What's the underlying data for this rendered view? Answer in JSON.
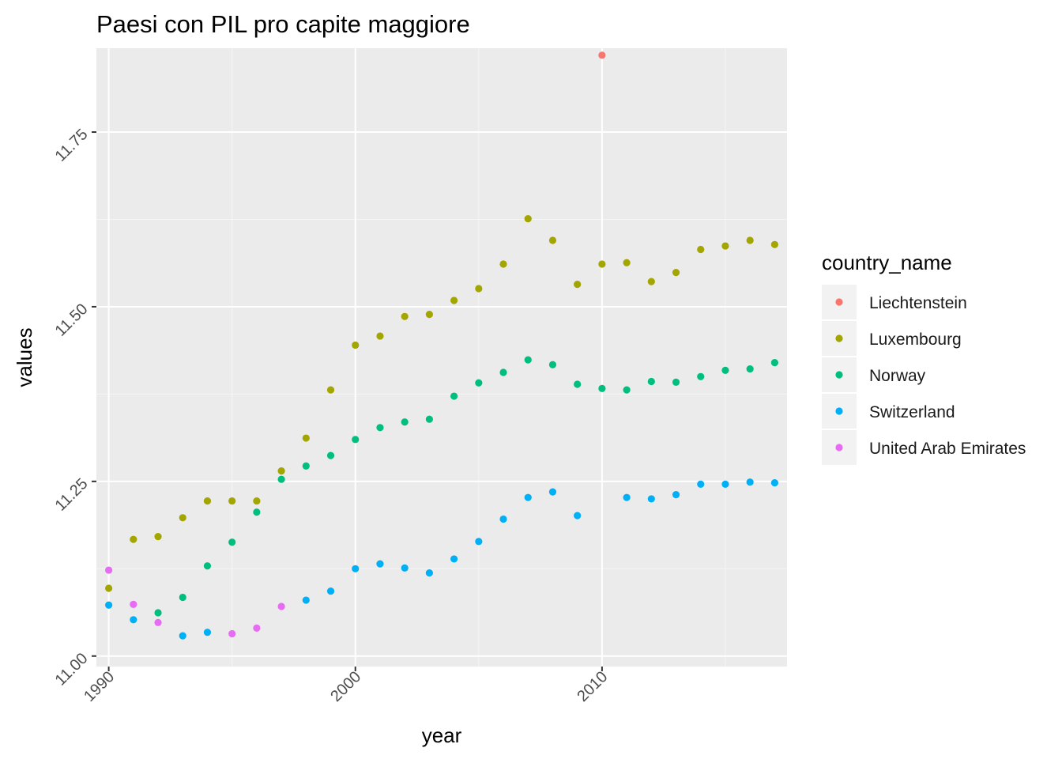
{
  "chart_data": {
    "type": "scatter",
    "title": "Paesi con PIL pro capite maggiore",
    "xlabel": "year",
    "ylabel": "values",
    "xlim": [
      1989.5,
      2017.5
    ],
    "ylim": [
      10.985,
      11.87
    ],
    "x_ticks": [
      {
        "value": 1990,
        "label": "1990"
      },
      {
        "value": 2000,
        "label": "2000"
      },
      {
        "value": 2010,
        "label": "2010"
      }
    ],
    "y_ticks": [
      {
        "value": 11.0,
        "label": "11.00"
      },
      {
        "value": 11.25,
        "label": "11.25"
      },
      {
        "value": 11.5,
        "label": "11.50"
      },
      {
        "value": 11.75,
        "label": "11.75"
      }
    ],
    "grid": true,
    "legend": {
      "title": "country_name",
      "position": "right"
    },
    "series": [
      {
        "name": "Liechtenstein",
        "color": "#F8766D",
        "points": [
          [
            2010,
            11.86
          ]
        ]
      },
      {
        "name": "Luxembourg",
        "color": "#A3A500",
        "points": [
          [
            1990,
            11.097
          ],
          [
            1991,
            11.167
          ],
          [
            1992,
            11.171
          ],
          [
            1993,
            11.198
          ],
          [
            1994,
            11.222
          ],
          [
            1995,
            11.222
          ],
          [
            1996,
            11.222
          ],
          [
            1997,
            11.265
          ],
          [
            1998,
            11.312
          ],
          [
            1999,
            11.381
          ],
          [
            2000,
            11.445
          ],
          [
            2001,
            11.458
          ],
          [
            2002,
            11.486
          ],
          [
            2003,
            11.489
          ],
          [
            2004,
            11.509
          ],
          [
            2005,
            11.526
          ],
          [
            2006,
            11.561
          ],
          [
            2007,
            11.626
          ],
          [
            2008,
            11.595
          ],
          [
            2009,
            11.532
          ],
          [
            2010,
            11.561
          ],
          [
            2011,
            11.563
          ],
          [
            2012,
            11.536
          ],
          [
            2013,
            11.549
          ],
          [
            2014,
            11.582
          ],
          [
            2015,
            11.587
          ],
          [
            2016,
            11.595
          ],
          [
            2017,
            11.589
          ]
        ]
      },
      {
        "name": "Norway",
        "color": "#00BF7D",
        "points": [
          [
            1992,
            11.062
          ],
          [
            1993,
            11.084
          ],
          [
            1994,
            11.129
          ],
          [
            1995,
            11.163
          ],
          [
            1996,
            11.206
          ],
          [
            1997,
            11.253
          ],
          [
            1998,
            11.272
          ],
          [
            1999,
            11.287
          ],
          [
            2000,
            11.31
          ],
          [
            2001,
            11.327
          ],
          [
            2002,
            11.335
          ],
          [
            2003,
            11.339
          ],
          [
            2004,
            11.372
          ],
          [
            2005,
            11.391
          ],
          [
            2006,
            11.406
          ],
          [
            2007,
            11.424
          ],
          [
            2008,
            11.417
          ],
          [
            2009,
            11.389
          ],
          [
            2010,
            11.383
          ],
          [
            2011,
            11.381
          ],
          [
            2012,
            11.393
          ],
          [
            2013,
            11.392
          ],
          [
            2014,
            11.4
          ],
          [
            2015,
            11.409
          ],
          [
            2016,
            11.411
          ],
          [
            2017,
            11.42
          ]
        ]
      },
      {
        "name": "Switzerland",
        "color": "#00B0F6",
        "points": [
          [
            1990,
            11.073
          ],
          [
            1991,
            11.052
          ],
          [
            1993,
            11.029
          ],
          [
            1994,
            11.034
          ],
          [
            1998,
            11.08
          ],
          [
            1999,
            11.093
          ],
          [
            2000,
            11.125
          ],
          [
            2001,
            11.132
          ],
          [
            2002,
            11.126
          ],
          [
            2003,
            11.119
          ],
          [
            2004,
            11.139
          ],
          [
            2005,
            11.164
          ],
          [
            2006,
            11.196
          ],
          [
            2007,
            11.227
          ],
          [
            2008,
            11.235
          ],
          [
            2009,
            11.201
          ],
          [
            2011,
            11.227
          ],
          [
            2012,
            11.225
          ],
          [
            2013,
            11.231
          ],
          [
            2014,
            11.246
          ],
          [
            2015,
            11.246
          ],
          [
            2016,
            11.249
          ],
          [
            2017,
            11.248
          ]
        ]
      },
      {
        "name": "United Arab Emirates",
        "color": "#E76BF3",
        "points": [
          [
            1990,
            11.123
          ],
          [
            1991,
            11.074
          ],
          [
            1992,
            11.048
          ],
          [
            1995,
            11.032
          ],
          [
            1996,
            11.04
          ],
          [
            1997,
            11.071
          ]
        ]
      }
    ]
  }
}
